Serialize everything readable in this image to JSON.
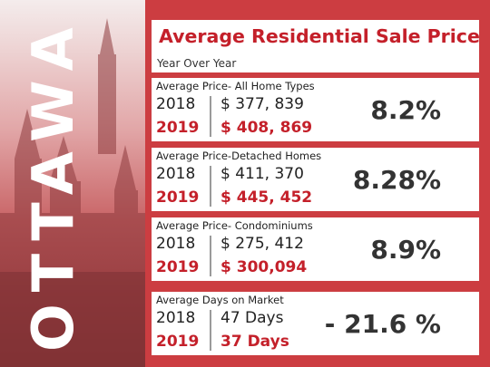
{
  "city": "OTTAWA",
  "header": {
    "title": "Average Residential Sale Price",
    "subtitle": "Year Over Year"
  },
  "cards": [
    {
      "label": "Average Price- All Home Types",
      "year1": "2018",
      "value1": "$ 377, 839",
      "year2": "2019",
      "value2": "$ 408, 869",
      "change": "8.2%"
    },
    {
      "label": "Average Price-Detached Homes",
      "year1": "2018",
      "value1": "$ 411, 370",
      "year2": "2019",
      "value2": "$ 445, 452",
      "change": "8.28%"
    },
    {
      "label": "Average Price- Condominiums",
      "year1": "2018",
      "value1": "$ 275, 412",
      "year2": "2019",
      "value2": "$ 300,094",
      "change": "8.9%"
    },
    {
      "label": "Average Days on Market",
      "year1": "2018",
      "value1": "47 Days",
      "year2": "2019",
      "value2": "37 Days",
      "change": "- 21.6 %"
    }
  ],
  "colors": {
    "accent": "#c4202a",
    "panel": "#cc3d41",
    "text": "#333333"
  }
}
